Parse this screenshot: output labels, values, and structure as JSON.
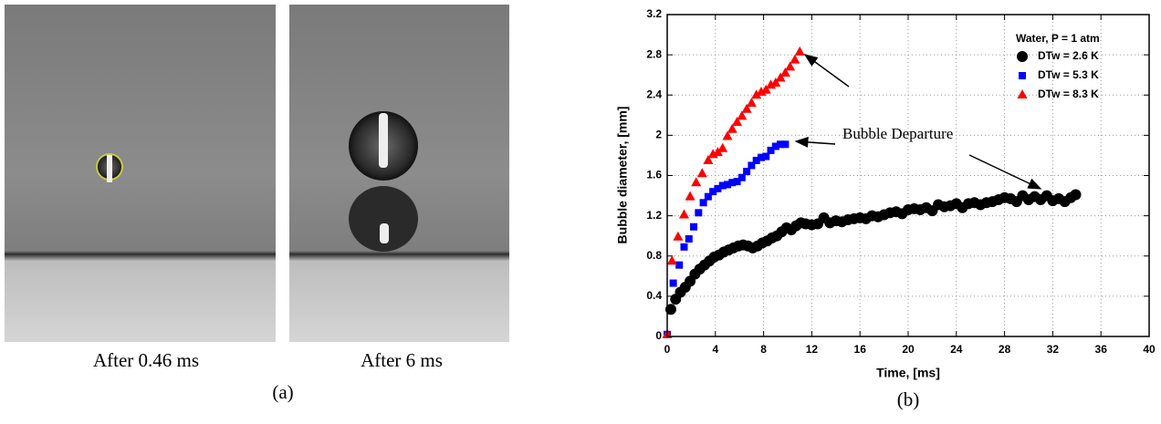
{
  "panel_a": {
    "captions": [
      "After 0.46 ms",
      "After 6 ms"
    ],
    "label": "(a)"
  },
  "chart_data": {
    "type": "scatter",
    "panel_label": "(b)",
    "x_label": "Time, [ms]",
    "y_label": "Bubble diameter, [mm]",
    "legend_title": "Water, P = 1 atm",
    "legend_position": "upper right",
    "annotation": "Bubble Departure",
    "xlim": [
      0,
      40
    ],
    "xticks": [
      0,
      4,
      8,
      12,
      16,
      20,
      24,
      28,
      32,
      36,
      40
    ],
    "ylim": [
      0,
      3.2
    ],
    "yticks": [
      0,
      0.4,
      0.8,
      1.2,
      1.6,
      2,
      2.4,
      2.8,
      3.2
    ],
    "grid": true,
    "series": [
      {
        "name": "DTw = 2.6 K",
        "color": "#000000",
        "marker": "circle",
        "x": [
          0.3,
          0.7,
          1.1,
          1.5,
          1.9,
          2.3,
          2.7,
          3.1,
          3.5,
          3.9,
          4.3,
          4.7,
          5.1,
          5.5,
          5.9,
          6.3,
          6.7,
          7.1,
          7.5,
          7.9,
          8.3,
          8.7,
          9.1,
          9.5,
          9.9,
          10.3,
          10.7,
          11.1,
          11.5,
          12.0,
          12.5,
          13.0,
          13.5,
          14.0,
          14.5,
          15.0,
          15.5,
          16.0,
          16.5,
          17.0,
          17.5,
          18.0,
          18.5,
          19.0,
          19.5,
          20.0,
          20.5,
          21.0,
          21.5,
          22.0,
          22.5,
          23.0,
          23.5,
          24.0,
          24.5,
          25.0,
          25.5,
          26.0,
          26.5,
          27.0,
          27.5,
          28.0,
          28.5,
          29.0,
          29.5,
          30.0,
          30.5,
          31.0,
          31.5,
          32.0,
          32.5,
          33.0,
          33.5,
          33.9
        ],
        "values": [
          0.27,
          0.37,
          0.44,
          0.49,
          0.55,
          0.62,
          0.67,
          0.71,
          0.75,
          0.79,
          0.81,
          0.84,
          0.86,
          0.88,
          0.9,
          0.91,
          0.9,
          0.88,
          0.9,
          0.93,
          0.95,
          0.98,
          1.0,
          1.04,
          1.08,
          1.06,
          1.1,
          1.13,
          1.12,
          1.11,
          1.12,
          1.18,
          1.13,
          1.15,
          1.14,
          1.16,
          1.17,
          1.18,
          1.17,
          1.2,
          1.19,
          1.21,
          1.23,
          1.24,
          1.22,
          1.26,
          1.27,
          1.26,
          1.28,
          1.25,
          1.31,
          1.29,
          1.3,
          1.32,
          1.28,
          1.32,
          1.33,
          1.31,
          1.33,
          1.34,
          1.36,
          1.38,
          1.37,
          1.34,
          1.4,
          1.36,
          1.39,
          1.36,
          1.4,
          1.35,
          1.37,
          1.34,
          1.38,
          1.41
        ]
      },
      {
        "name": "DTw = 5.3 K",
        "color": "#0000ff",
        "marker": "square",
        "x": [
          0,
          0.5,
          1.0,
          1.4,
          1.8,
          2.2,
          2.6,
          3.0,
          3.4,
          3.8,
          4.2,
          4.6,
          5.0,
          5.4,
          5.8,
          6.2,
          6.6,
          7.0,
          7.4,
          7.8,
          8.2,
          8.6,
          9.0,
          9.4,
          9.8
        ],
        "values": [
          0.02,
          0.53,
          0.71,
          0.89,
          0.97,
          1.09,
          1.23,
          1.33,
          1.39,
          1.44,
          1.47,
          1.5,
          1.51,
          1.53,
          1.54,
          1.58,
          1.64,
          1.7,
          1.75,
          1.78,
          1.79,
          1.85,
          1.89,
          1.91,
          1.91
        ]
      },
      {
        "name": "DTw = 8.3 K",
        "color": "#ff0000",
        "marker": "triangle",
        "x": [
          0,
          0.4,
          0.9,
          1.4,
          1.9,
          2.4,
          2.9,
          3.4,
          3.8,
          4.2,
          4.6,
          5.0,
          5.4,
          5.8,
          6.2,
          6.6,
          7.0,
          7.4,
          7.8,
          8.2,
          8.6,
          9.0,
          9.4,
          9.8,
          10.2,
          10.6,
          11.0
        ],
        "values": [
          0.02,
          0.75,
          0.99,
          1.21,
          1.39,
          1.53,
          1.62,
          1.75,
          1.81,
          1.83,
          1.87,
          1.99,
          2.06,
          2.13,
          2.19,
          2.26,
          2.32,
          2.4,
          2.43,
          2.45,
          2.5,
          2.52,
          2.57,
          2.62,
          2.68,
          2.75,
          2.83
        ]
      }
    ]
  }
}
